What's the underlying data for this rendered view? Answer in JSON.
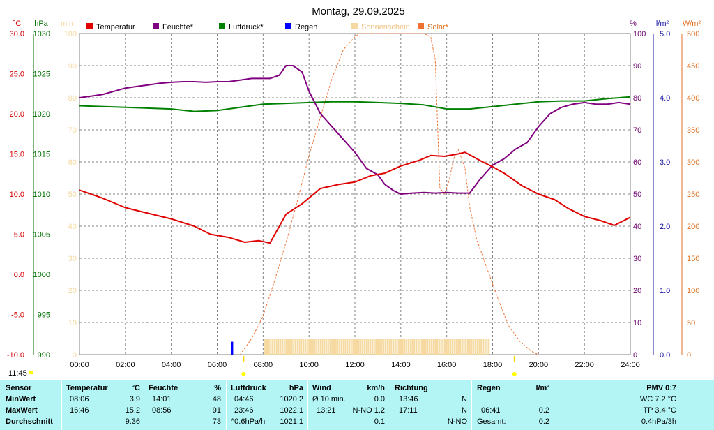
{
  "chart_data": {
    "type": "line",
    "title": "Montag, 29.09.2025",
    "x_labels": [
      "00:00",
      "02:00",
      "04:00",
      "06:00",
      "08:00",
      "10:00",
      "12:00",
      "14:00",
      "16:00",
      "18:00",
      "20:00",
      "22:00",
      "24:00"
    ],
    "axes": {
      "temp": {
        "unit": "°C",
        "ticks": [
          "30.0",
          "25.0",
          "20.0",
          "15.0",
          "10.0",
          "5.0",
          "0.0",
          "-5.0",
          "-10.0"
        ],
        "color": "#d40000"
      },
      "pressure": {
        "unit": "hPa",
        "ticks": [
          "1030",
          "1025",
          "1020",
          "1015",
          "1010",
          "1005",
          "1000",
          "995",
          "990"
        ],
        "color": "#007000"
      },
      "sun_min": {
        "unit": "min",
        "ticks": [
          "100",
          "90",
          "80",
          "70",
          "60",
          "50",
          "40",
          "30",
          "20",
          "10",
          "0"
        ],
        "color": "#f5d9a0"
      },
      "humidity": {
        "unit": "%",
        "ticks": [
          "100",
          "90",
          "80",
          "70",
          "60",
          "50",
          "40",
          "30",
          "20",
          "10",
          "0"
        ],
        "color": "#6a006a"
      },
      "rain": {
        "unit": "l/m²",
        "ticks": [
          "5.0",
          "4.0",
          "3.0",
          "2.0",
          "1.0",
          "0.0"
        ],
        "color": "#1414a0"
      },
      "solar": {
        "unit": "W/m²",
        "ticks": [
          "500",
          "450",
          "400",
          "350",
          "300",
          "250",
          "200",
          "150",
          "100",
          "50",
          "0"
        ],
        "color": "#e07020"
      }
    },
    "legend": [
      {
        "label": "Temperatur",
        "color": "#e00000"
      },
      {
        "label": "Feuchte*",
        "color": "#800080"
      },
      {
        "label": "Luftdruck*",
        "color": "#008000"
      },
      {
        "label": "Regen",
        "color": "#0000ff"
      },
      {
        "label": "Sonnenschein",
        "color": "#f5d9a0"
      },
      {
        "label": "Solar*",
        "color": "#f07030"
      }
    ],
    "series": [
      {
        "name": "Temperatur",
        "unit": "°C",
        "x": [
          0,
          1,
          2,
          3,
          4,
          5,
          5.7,
          6.5,
          7.2,
          7.8,
          8.3,
          9,
          9.7,
          10.5,
          11.3,
          12,
          12.7,
          13.3,
          14,
          14.8,
          15.3,
          15.9,
          16.5,
          16.8,
          17.5,
          18,
          18.5,
          19.3,
          20,
          20.7,
          21.3,
          22,
          22.7,
          23.3,
          24
        ],
        "y": [
          10.5,
          9.5,
          8.3,
          7.6,
          6.9,
          6.0,
          5.0,
          4.6,
          4.0,
          4.2,
          3.9,
          7.5,
          8.8,
          10.7,
          11.2,
          11.5,
          12.3,
          12.6,
          13.5,
          14.2,
          14.8,
          14.7,
          15.0,
          15.2,
          14.1,
          13.4,
          12.6,
          11.0,
          10.0,
          9.3,
          8.2,
          7.2,
          6.7,
          6.1,
          7.1
        ]
      },
      {
        "name": "Feuchte*",
        "unit": "%",
        "x": [
          0,
          0.5,
          1,
          1.5,
          2,
          2.5,
          3,
          3.5,
          4,
          4.5,
          5,
          5.5,
          6,
          6.5,
          7,
          7.5,
          8,
          8.3,
          8.7,
          9,
          9.3,
          9.7,
          10,
          10.5,
          11,
          11.5,
          12,
          12.5,
          13,
          13.3,
          13.7,
          14,
          14.5,
          15,
          15.5,
          16,
          16.5,
          17,
          17.5,
          18,
          18.5,
          19,
          19.5,
          20,
          20.5,
          21,
          21.5,
          22,
          22.5,
          23,
          23.5,
          24
        ],
        "y": [
          80,
          80.5,
          81,
          82,
          83,
          83.5,
          84,
          84.5,
          84.8,
          85,
          85,
          84.8,
          85,
          85,
          85.5,
          86,
          86,
          86,
          87,
          90,
          90,
          88,
          82,
          75,
          71,
          67,
          63,
          58,
          56,
          53,
          51,
          50,
          50.3,
          50.5,
          50.3,
          50.5,
          50.3,
          50.3,
          55,
          59,
          61,
          64,
          66,
          71,
          75,
          77,
          78,
          78.5,
          78,
          78,
          78.5,
          78
        ]
      },
      {
        "name": "Luftdruck*",
        "unit": "hPa",
        "x": [
          0,
          2,
          4,
          5,
          6,
          7,
          8,
          9,
          10,
          11,
          12,
          13,
          14,
          15,
          16,
          17,
          18,
          19,
          20,
          21,
          22,
          23,
          24
        ],
        "y": [
          1021.0,
          1020.8,
          1020.6,
          1020.3,
          1020.4,
          1020.8,
          1021.2,
          1021.3,
          1021.4,
          1021.5,
          1021.5,
          1021.4,
          1021.3,
          1021.1,
          1020.6,
          1020.6,
          1020.9,
          1021.2,
          1021.5,
          1021.6,
          1021.6,
          1021.9,
          1022.1
        ]
      },
      {
        "name": "Solar*",
        "unit": "W/m²",
        "x": [
          7,
          7.5,
          8,
          8.5,
          9,
          9.5,
          10,
          10.5,
          11,
          11.5,
          12,
          12.2,
          12.5,
          13,
          13.5,
          14,
          14.5,
          15,
          15.3,
          15.5,
          15.7,
          15.9,
          16.1,
          16.3,
          16.5,
          16.8,
          17,
          17.3,
          17.7,
          18.2,
          18.7,
          19.2,
          19.7,
          20
        ],
        "y": [
          0,
          25,
          60,
          115,
          175,
          240,
          310,
          370,
          430,
          475,
          495,
          500,
          500,
          500,
          500,
          500,
          500,
          500,
          495,
          460,
          260,
          250,
          270,
          305,
          320,
          290,
          230,
          180,
          140,
          90,
          45,
          20,
          5,
          0
        ]
      },
      {
        "name": "Regen",
        "unit": "l/m²",
        "x": [
          6.65
        ],
        "y": [
          0.2
        ]
      },
      {
        "name": "Sonnenschein",
        "unit": "min",
        "from": 8.1,
        "to": 17.9,
        "y": 5
      }
    ],
    "markers": {
      "time_label": "11:45",
      "sunrise": 7.15,
      "sunset": 18.95
    }
  },
  "stats": {
    "sensor": {
      "header": "Sensor",
      "min": "MinWert",
      "max": "MaxWert",
      "avg": "Durchschnitt"
    },
    "temperature": {
      "header": "Temperatur",
      "unit": "°C",
      "min_time": "08:06",
      "min_val": "3.9",
      "max_time": "16:46",
      "max_val": "15.2",
      "avg": "9.36"
    },
    "humidity": {
      "header": "Feuchte",
      "unit": "%",
      "min_time": "14:01",
      "min_val": "48",
      "max_time": "08:56",
      "max_val": "91",
      "avg": "73"
    },
    "pressure": {
      "header": "Luftdruck",
      "unit": "hPa",
      "min_time": "04:46",
      "min_val": "1020.2",
      "max_time": "23:46",
      "max_val": "1022.1",
      "trend": "^0.6hPa/h",
      "avg": "1021.1"
    },
    "wind": {
      "header": "Wind",
      "unit": "km/h",
      "row1_label": "Ø 10 min.",
      "row1_val": "0.0",
      "row2_time": "13:21",
      "row2_val": "N-NO 1.2",
      "avg": "0.1"
    },
    "direction": {
      "header": "Richtung",
      "row1_time": "13:46",
      "row1_val": "N",
      "row2_time": "17:11",
      "row2_val": "N",
      "avg": "N-NO"
    },
    "rain": {
      "header": "Regen",
      "unit": "l/m²",
      "row2_time": "06:41",
      "row2_val": "0.2",
      "total_label": "Gesamt:",
      "total_val": "0.2"
    },
    "pmv": {
      "header": "PMV 0:7",
      "wc": "WC 7.2 °C",
      "tp": "TP 3.4 °C",
      "trend": "0.4hPa/3h"
    }
  }
}
